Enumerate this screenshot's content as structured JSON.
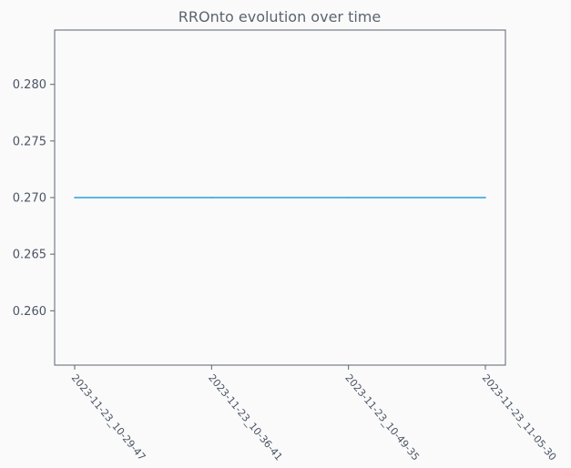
{
  "chart_data": {
    "type": "line",
    "title": "RROnto evolution over time",
    "xlabel": "",
    "ylabel": "",
    "categories": [
      "2023-11-23_10-29-47",
      "2023-11-23_10-36-41",
      "2023-11-23_10-49-35",
      "2023-11-23_11-05-30"
    ],
    "series": [
      {
        "values": [
          0.27,
          0.27,
          0.27,
          0.27
        ],
        "color": "#2aa0d8"
      }
    ],
    "ylim": [
      0.2552,
      0.2848
    ],
    "yticks": [
      "0.260",
      "0.265",
      "0.270",
      "0.275",
      "0.280"
    ],
    "grid": false,
    "legend": "none"
  },
  "colors": {
    "background": "#fafafa",
    "axes": "#5c6470",
    "text": "#4b5565",
    "line": "#2aa0d8"
  }
}
